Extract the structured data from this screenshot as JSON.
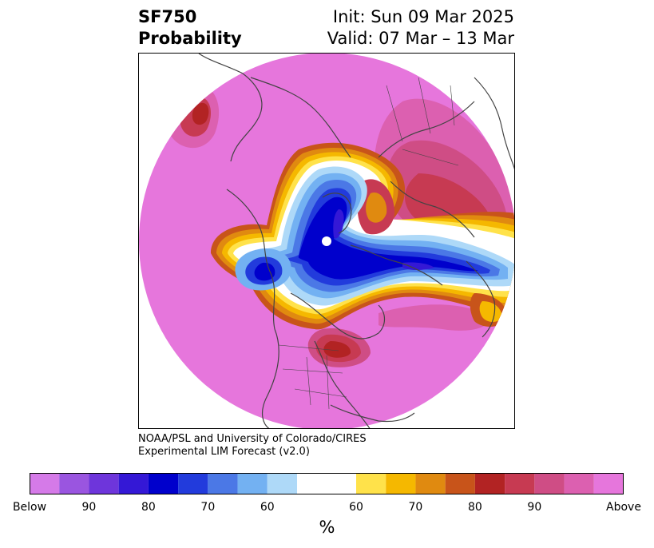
{
  "header": {
    "variable": "SF750",
    "product": "Probability",
    "init": "Init: Sun 09 Mar 2025",
    "valid": "Valid: 07 Mar – 13 Mar"
  },
  "credit": {
    "line1": "NOAA/PSL and University of Colorado/CIRES",
    "line2": "Experimental LIM Forecast (v2.0)"
  },
  "colorbar": {
    "colors": [
      "#d57ae8",
      "#9a55e0",
      "#6e35db",
      "#3418d6",
      "#0000cc",
      "#223bdc",
      "#4b78e6",
      "#73b1f2",
      "#aed9f8",
      "#ffffff",
      "#ffe24a",
      "#f5b800",
      "#e08a10",
      "#c8541a",
      "#b22323",
      "#c73a52",
      "#cf4d85",
      "#dc60b0",
      "#e676dc"
    ],
    "labels": [
      "Below",
      "90",
      "80",
      "70",
      "60",
      "60",
      "70",
      "80",
      "90",
      "Above"
    ],
    "unit": "%"
  },
  "map": {
    "projection": "north-polar-stereographic",
    "background_color": "#e676dc",
    "coastline_color": "#444444"
  }
}
